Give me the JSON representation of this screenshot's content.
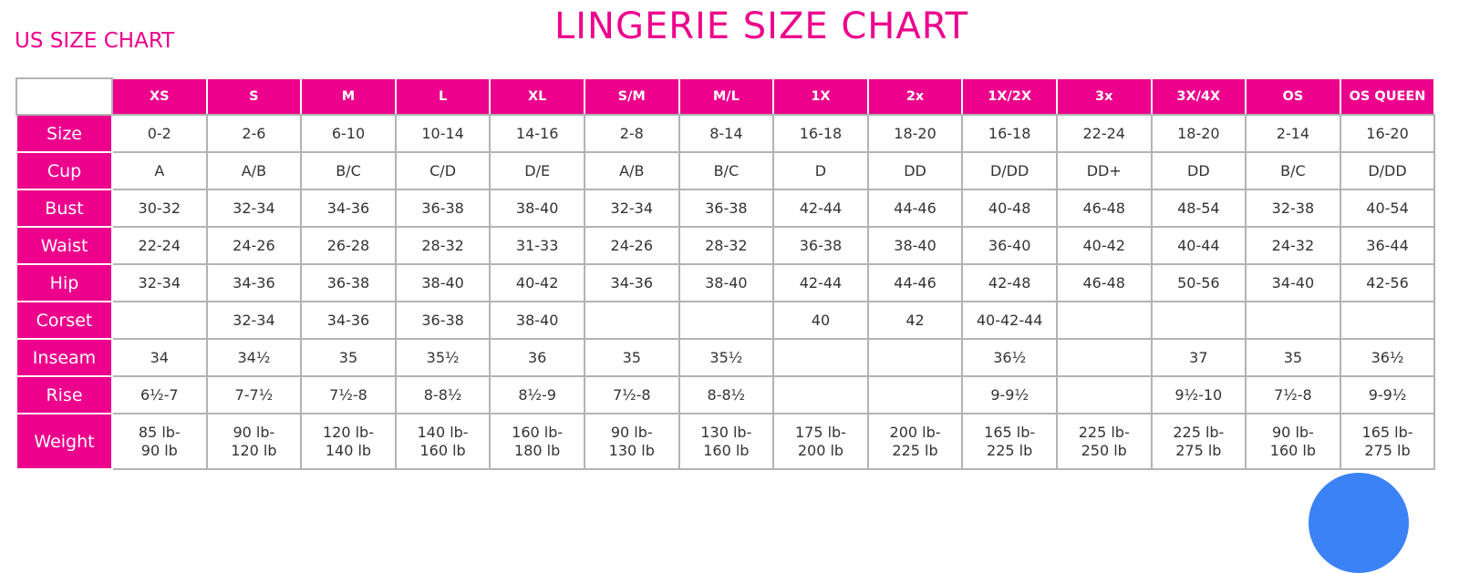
{
  "title": "LINGERIE SIZE CHART",
  "subtitle": "US SIZE CHART",
  "colors": {
    "accent": "#ec008c",
    "grid": "#b3b3b3",
    "fab": "#3b82f6"
  },
  "columns": [
    "XS",
    "S",
    "M",
    "L",
    "XL",
    "S/M",
    "M/L",
    "1X",
    "2x",
    "1X/2X",
    "3x",
    "3X/4X",
    "OS",
    "OS QUEEN"
  ],
  "rows": [
    {
      "label": "Size",
      "values": [
        "0-2",
        "2-6",
        "6-10",
        "10-14",
        "14-16",
        "2-8",
        "8-14",
        "16-18",
        "18-20",
        "16-18",
        "22-24",
        "18-20",
        "2-14",
        "16-20"
      ]
    },
    {
      "label": "Cup",
      "values": [
        "A",
        "A/B",
        "B/C",
        "C/D",
        "D/E",
        "A/B",
        "B/C",
        "D",
        "DD",
        "D/DD",
        "DD+",
        "DD",
        "B/C",
        "D/DD"
      ]
    },
    {
      "label": "Bust",
      "values": [
        "30-32",
        "32-34",
        "34-36",
        "36-38",
        "38-40",
        "32-34",
        "36-38",
        "42-44",
        "44-46",
        "40-48",
        "46-48",
        "48-54",
        "32-38",
        "40-54"
      ]
    },
    {
      "label": "Waist",
      "values": [
        "22-24",
        "24-26",
        "26-28",
        "28-32",
        "31-33",
        "24-26",
        "28-32",
        "36-38",
        "38-40",
        "36-40",
        "40-42",
        "40-44",
        "24-32",
        "36-44"
      ]
    },
    {
      "label": "Hip",
      "values": [
        "32-34",
        "34-36",
        "36-38",
        "38-40",
        "40-42",
        "34-36",
        "38-40",
        "42-44",
        "44-46",
        "42-48",
        "46-48",
        "50-56",
        "34-40",
        "42-56"
      ]
    },
    {
      "label": "Corset",
      "values": [
        "",
        "32-34",
        "34-36",
        "36-38",
        "38-40",
        "",
        "",
        "40",
        "42",
        "40-42-44",
        "",
        "",
        "",
        ""
      ]
    },
    {
      "label": "Inseam",
      "values": [
        "34",
        "34½",
        "35",
        "35½",
        "36",
        "35",
        "35½",
        "",
        "",
        "36½",
        "",
        "37",
        "35",
        "36½"
      ]
    },
    {
      "label": "Rise",
      "values": [
        "6½-7",
        "7-7½",
        "7½-8",
        "8-8½",
        "8½-9",
        "7½-8",
        "8-8½",
        "",
        "",
        "9-9½",
        "",
        "9½-10",
        "7½-8",
        "9-9½"
      ]
    },
    {
      "label": "Weight",
      "values": [
        [
          "85 lb-",
          "90 lb"
        ],
        [
          "90 lb-",
          "120 lb"
        ],
        [
          "120 lb-",
          "140 lb"
        ],
        [
          "140 lb-",
          "160 lb"
        ],
        [
          "160 lb-",
          "180 lb"
        ],
        [
          "90 lb-",
          "130 lb"
        ],
        [
          "130 lb-",
          "160 lb"
        ],
        [
          "175 lb-",
          "200 lb"
        ],
        [
          "200 lb-",
          "225 lb"
        ],
        [
          "165 lb-",
          "225 lb"
        ],
        [
          "225 lb-",
          "250 lb"
        ],
        [
          "225 lb-",
          "275 lb"
        ],
        [
          "90 lb-",
          "160 lb"
        ],
        [
          "165 lb-",
          "275 lb"
        ]
      ]
    }
  ]
}
